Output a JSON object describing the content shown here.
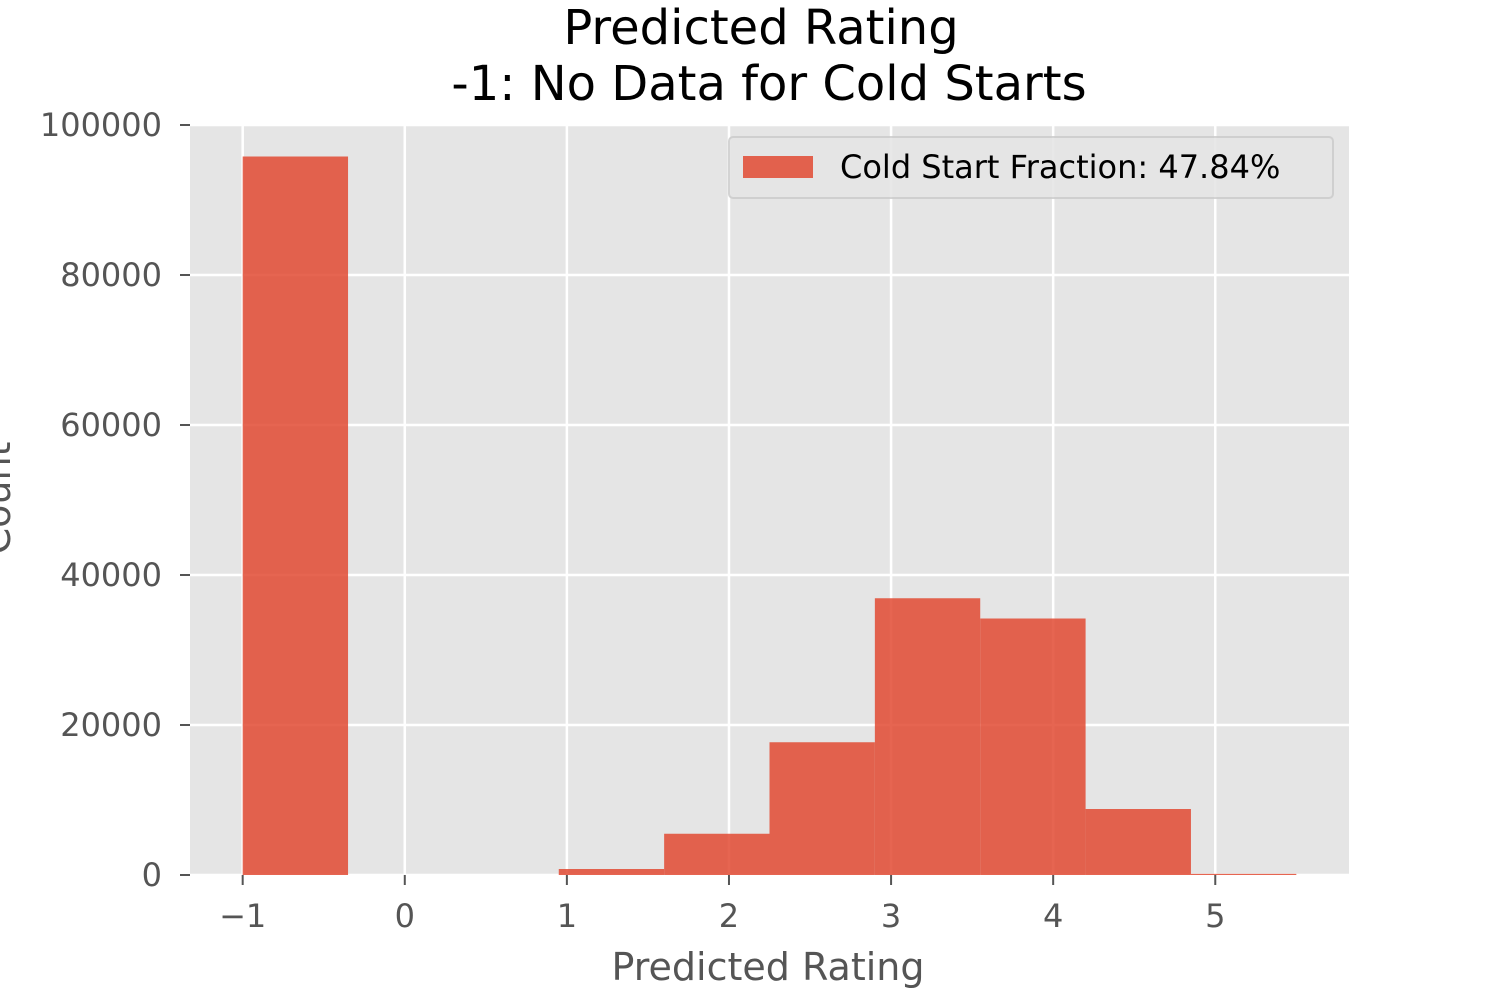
{
  "chart_data": {
    "type": "bar",
    "title": [
      "Predicted Rating",
      "-1: No Data for Cold Starts"
    ],
    "xlabel": "Predicted Rating",
    "ylabel": "Count",
    "xlim": [
      -1.325,
      5.825
    ],
    "ylim": [
      0,
      100000
    ],
    "xticks": [
      -1,
      0,
      1,
      2,
      3,
      4,
      5
    ],
    "xtick_labels": [
      "−1",
      "0",
      "1",
      "2",
      "3",
      "4",
      "5"
    ],
    "yticks": [
      0,
      20000,
      40000,
      60000,
      80000,
      100000
    ],
    "ytick_labels": [
      "0",
      "20000",
      "40000",
      "60000",
      "80000",
      "100000"
    ],
    "grid": true,
    "legend_position": "top-right",
    "series": [
      {
        "name": "Cold Start Fraction: 47.84%",
        "bins": [
          {
            "x0": -1.0,
            "x1": -0.35,
            "count": 95800
          },
          {
            "x0": -0.35,
            "x1": 0.3,
            "count": 0
          },
          {
            "x0": 0.3,
            "x1": 0.95,
            "count": 0
          },
          {
            "x0": 0.95,
            "x1": 1.6,
            "count": 800
          },
          {
            "x0": 1.6,
            "x1": 2.25,
            "count": 5500
          },
          {
            "x0": 2.25,
            "x1": 2.9,
            "count": 17700
          },
          {
            "x0": 2.9,
            "x1": 3.55,
            "count": 36900
          },
          {
            "x0": 3.55,
            "x1": 4.2,
            "count": 34200
          },
          {
            "x0": 4.2,
            "x1": 4.85,
            "count": 8800
          },
          {
            "x0": 4.85,
            "x1": 5.5,
            "count": 150
          }
        ]
      }
    ],
    "colors": {
      "bar": "#E24A33",
      "plot_bg": "#E5E5E5",
      "grid": "#FFFFFF"
    }
  }
}
